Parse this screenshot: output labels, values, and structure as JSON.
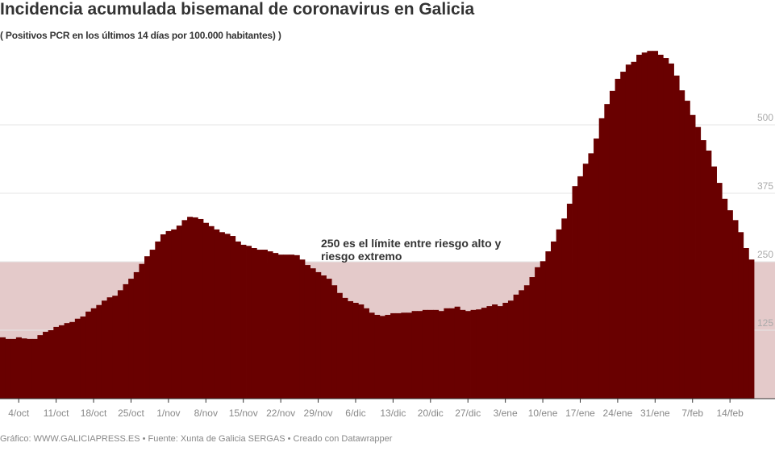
{
  "title": "Incidencia acumulada bisemanal de coronavirus en Galicia",
  "subtitle": "( Positivos PCR en los últimos 14 días por 100.000 habitantes) )",
  "footer": "Gráfico: WWW.GALICIAPRESS.ES • Fuente: Xunta de Galicia SERGAS • Creado con Datawrapper",
  "colors": {
    "bar": "#690000",
    "band": "#e4caca",
    "grid": "#e6e6e6"
  },
  "chart_data": {
    "type": "bar",
    "title": "Incidencia acumulada bisemanal de coronavirus en Galicia",
    "x_start": "1/oct",
    "x_end": "17/feb",
    "x_interval": "1 day",
    "ylim": [
      0,
      640
    ],
    "y_ticks": [
      "125",
      "250",
      "375",
      "500"
    ],
    "grid": true,
    "x_tick_labels": [
      "4/oct",
      "11/oct",
      "18/oct",
      "25/oct",
      "1/nov",
      "8/nov",
      "15/nov",
      "22/nov",
      "29/nov",
      "6/dic",
      "13/dic",
      "20/dic",
      "27/dic",
      "3/ene",
      "10/ene",
      "17/ene",
      "24/ene",
      "31/ene",
      "7/feb",
      "14/feb"
    ],
    "band": {
      "from": 0,
      "to": 250
    },
    "annotation": [
      "250 es el límite entre riesgo alto y",
      "riesgo extremo"
    ],
    "values": [
      112,
      109,
      109,
      112,
      110,
      109,
      109,
      116,
      122,
      125,
      131,
      134,
      138,
      140,
      146,
      150,
      159,
      165,
      171,
      179,
      185,
      188,
      198,
      209,
      219,
      231,
      246,
      260,
      272,
      287,
      300,
      306,
      309,
      316,
      326,
      332,
      331,
      328,
      321,
      315,
      309,
      304,
      301,
      297,
      287,
      281,
      279,
      275,
      272,
      272,
      269,
      266,
      263,
      263,
      263,
      262,
      254,
      244,
      238,
      231,
      225,
      219,
      207,
      193,
      184,
      178,
      175,
      172,
      165,
      157,
      153,
      151,
      153,
      156,
      156,
      157,
      157,
      160,
      160,
      162,
      162,
      162,
      160,
      165,
      165,
      168,
      162,
      160,
      162,
      163,
      166,
      169,
      172,
      169,
      175,
      179,
      190,
      198,
      207,
      222,
      240,
      251,
      269,
      287,
      309,
      329,
      356,
      388,
      406,
      429,
      448,
      475,
      512,
      538,
      562,
      584,
      597,
      610,
      615,
      628,
      632,
      635,
      635,
      628,
      622,
      612,
      590,
      563,
      544,
      518,
      496,
      472,
      453,
      424,
      394,
      365,
      344,
      326,
      304,
      275,
      254
    ]
  }
}
